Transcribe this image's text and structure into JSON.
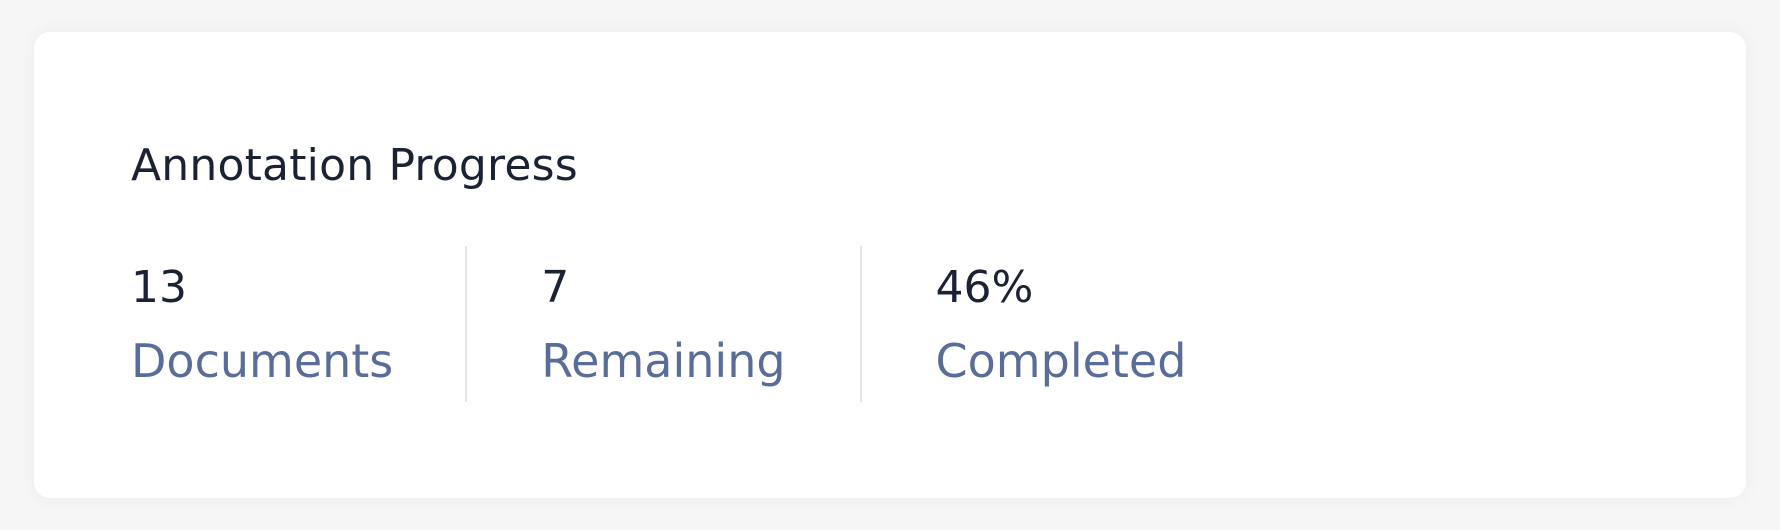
{
  "colors": {
    "page_background": "#f6f6f7",
    "card_background": "#ffffff",
    "value_text": "#1b2233",
    "label_text": "#5a6d98",
    "divider": "#e3e6ee"
  },
  "card": {
    "title": "Annotation Progress",
    "stats": [
      {
        "value": "13",
        "label": "Documents"
      },
      {
        "value": "7",
        "label": "Remaining"
      },
      {
        "value": "46%",
        "label": "Completed"
      }
    ]
  }
}
